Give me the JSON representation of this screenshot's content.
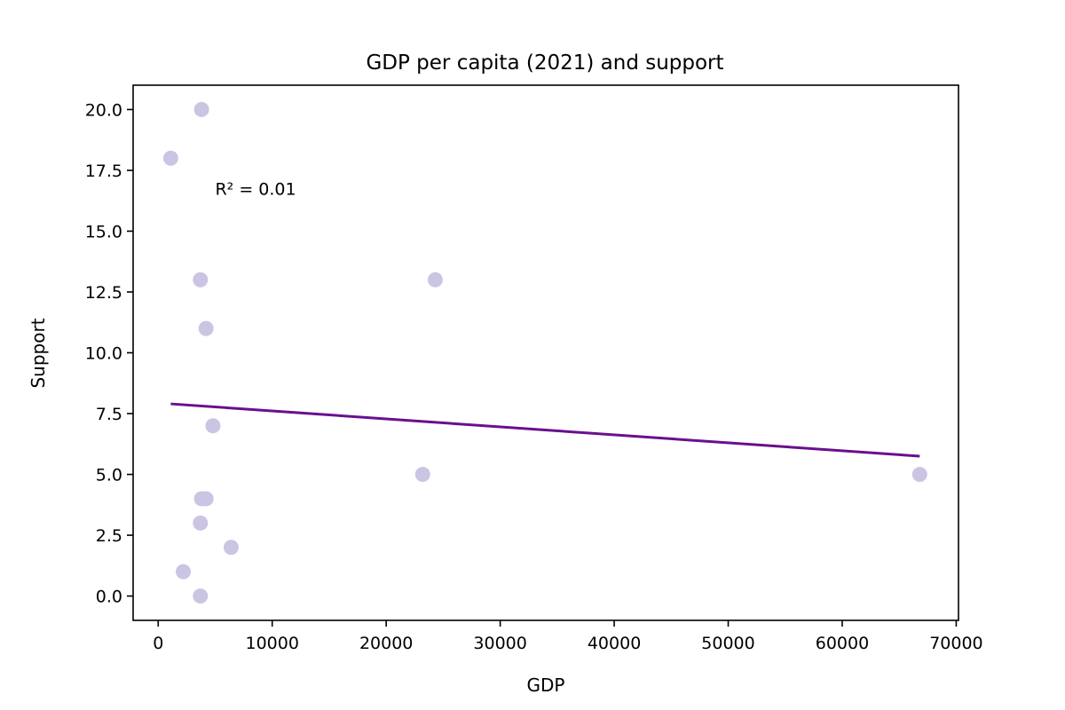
{
  "chart_data": {
    "type": "scatter",
    "title": "GDP per capita (2021) and support",
    "xlabel": "GDP",
    "ylabel": "Support",
    "xlim": [
      -2200,
      70200
    ],
    "ylim": [
      -1.0,
      21.0
    ],
    "x_ticks": [
      0,
      10000,
      20000,
      30000,
      40000,
      50000,
      60000,
      70000
    ],
    "x_tick_labels": [
      "0",
      "10000",
      "20000",
      "30000",
      "40000",
      "50000",
      "60000",
      "70000"
    ],
    "y_ticks": [
      0.0,
      2.5,
      5.0,
      7.5,
      10.0,
      12.5,
      15.0,
      17.5,
      20.0
    ],
    "y_tick_labels": [
      "0.0",
      "2.5",
      "5.0",
      "7.5",
      "10.0",
      "12.5",
      "15.0",
      "17.5",
      "20.0"
    ],
    "grid": false,
    "series": [
      {
        "points": [
          {
            "x": 3800,
            "y": 20
          },
          {
            "x": 1100,
            "y": 18
          },
          {
            "x": 3700,
            "y": 13
          },
          {
            "x": 24300,
            "y": 13
          },
          {
            "x": 4200,
            "y": 11
          },
          {
            "x": 4800,
            "y": 7
          },
          {
            "x": 23200,
            "y": 5
          },
          {
            "x": 66800,
            "y": 5
          },
          {
            "x": 3800,
            "y": 4
          },
          {
            "x": 4200,
            "y": 4
          },
          {
            "x": 3700,
            "y": 3
          },
          {
            "x": 6400,
            "y": 2
          },
          {
            "x": 2200,
            "y": 1
          },
          {
            "x": 3700,
            "y": 0
          }
        ],
        "color": "#cbc4e3"
      }
    ],
    "fit_line": {
      "x": [
        1100,
        66800
      ],
      "y": [
        7.9,
        5.75
      ],
      "color": "#6a0f8e"
    },
    "annotation": {
      "text": "R² = 0.01",
      "x": 5000,
      "y": 16.5
    }
  }
}
